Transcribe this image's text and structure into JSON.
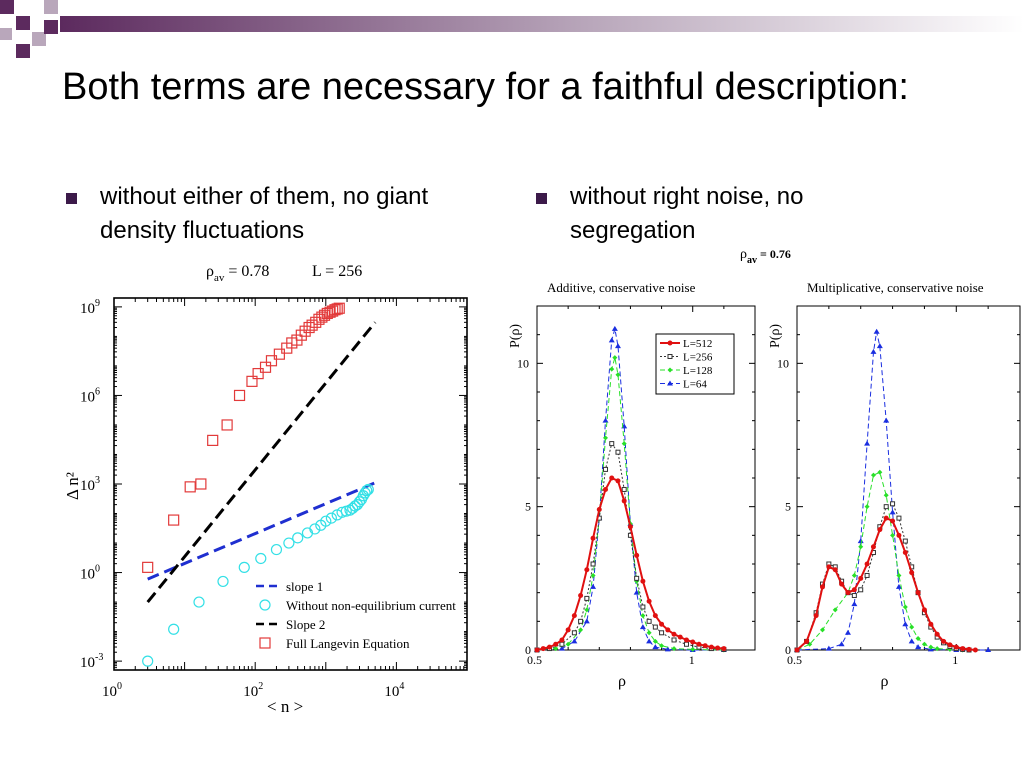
{
  "slide": {
    "title": "Both terms are necessary for a faithful description:",
    "bullets": [
      "without either of them, no giant density fluctuations",
      "without right noise, no segregation"
    ],
    "accent_color": "#5c2a5e",
    "bullet_color": "#3c1a4a"
  },
  "chart_data": [
    {
      "type": "scatter",
      "title_rho": "ρ",
      "title_rho_sub": "av",
      "title_value": " = 0.78",
      "title_L": "L = 256",
      "xlabel": "< n >",
      "ylabel": "Δ n²",
      "xscale": "log",
      "yscale": "log",
      "xlim": [
        1,
        100000
      ],
      "ylim": [
        0.0005,
        2000000000
      ],
      "x_ticks": [
        {
          "base": "10",
          "exp": "0"
        },
        {
          "base": "10",
          "exp": "2"
        },
        {
          "base": "10",
          "exp": "4"
        }
      ],
      "y_ticks": [
        {
          "base": "10",
          "exp": "-3"
        },
        {
          "base": "10",
          "exp": "0"
        },
        {
          "base": "10",
          "exp": "3"
        },
        {
          "base": "10",
          "exp": "6"
        },
        {
          "base": "10",
          "exp": "9"
        }
      ],
      "legend": [
        "slope 1",
        "Without non-equilibrium current",
        "Slope 2",
        "Full Langevin Equation"
      ],
      "legend_position": "bottom-right",
      "series": [
        {
          "name": "slope 1",
          "style": "dashed",
          "color": "#1f2fd0",
          "x": [
            3,
            5000
          ],
          "y": [
            0.6,
            1100
          ]
        },
        {
          "name": "Without non-equilibrium current",
          "style": "circle",
          "color": "#33e0e6",
          "x": [
            3,
            7,
            16,
            35,
            70,
            120,
            200,
            300,
            400,
            550,
            700,
            850,
            1000,
            1200,
            1450,
            1700,
            1950,
            2200,
            2400,
            2600,
            2800,
            3000,
            3200,
            3400,
            3600,
            3800,
            4000
          ],
          "y": [
            0.001,
            0.012,
            0.1,
            0.5,
            1.5,
            3,
            6,
            10,
            15,
            22,
            30,
            40,
            55,
            70,
            90,
            110,
            120,
            130,
            150,
            180,
            200,
            250,
            300,
            400,
            500,
            600,
            650
          ]
        },
        {
          "name": "Slope 2",
          "style": "dashed",
          "color": "#000000",
          "x": [
            3,
            5000
          ],
          "y": [
            0.1,
            300000000
          ]
        },
        {
          "name": "Full Langevin Equation",
          "style": "square",
          "color": "#e23a3a",
          "x": [
            3,
            7,
            12,
            17,
            25,
            40,
            60,
            90,
            110,
            140,
            170,
            220,
            280,
            330,
            390,
            450,
            510,
            580,
            640,
            720,
            800,
            880,
            960,
            1050,
            1150,
            1250,
            1350,
            1450,
            1550
          ],
          "y": [
            1.5,
            60,
            800,
            1000,
            30000,
            100000,
            1000000,
            3000000,
            5500000,
            9000000,
            15000000,
            25000000,
            40000000,
            60000000,
            75000000,
            110000000,
            150000000,
            200000000,
            240000000,
            300000000,
            380000000,
            450000000,
            520000000,
            600000000,
            660000000,
            720000000,
            800000000,
            850000000,
            900000000
          ]
        }
      ]
    },
    {
      "type": "line",
      "title": "Additive, conservative noise",
      "xlabel": "ρ",
      "ylabel": "P(ρ)",
      "xlim": [
        0.5,
        1.2
      ],
      "ylim": [
        0,
        12
      ],
      "x_tick_labels": [
        "0.5",
        "1"
      ],
      "y_tick_labels": [
        "0",
        "5",
        "10"
      ],
      "legend_position": "top-right",
      "series": [
        {
          "name": "L=512",
          "color": "#e01010",
          "style": "solid",
          "x": [
            0.5,
            0.52,
            0.54,
            0.56,
            0.58,
            0.6,
            0.62,
            0.64,
            0.66,
            0.68,
            0.7,
            0.72,
            0.74,
            0.76,
            0.78,
            0.8,
            0.82,
            0.84,
            0.86,
            0.88,
            0.9,
            0.92,
            0.94,
            0.96,
            0.98,
            1.0,
            1.02,
            1.04,
            1.06,
            1.08,
            1.1
          ],
          "y": [
            0.0,
            0.05,
            0.1,
            0.2,
            0.35,
            0.7,
            1.2,
            1.9,
            2.8,
            3.9,
            4.9,
            5.6,
            6.0,
            5.9,
            5.2,
            4.3,
            3.3,
            2.4,
            1.7,
            1.2,
            0.9,
            0.7,
            0.55,
            0.45,
            0.35,
            0.28,
            0.2,
            0.15,
            0.1,
            0.07,
            0.05
          ]
        },
        {
          "name": "L=256",
          "color": "#333333",
          "style": "dotted",
          "x": [
            0.5,
            0.54,
            0.58,
            0.62,
            0.64,
            0.66,
            0.68,
            0.7,
            0.72,
            0.74,
            0.76,
            0.78,
            0.8,
            0.82,
            0.84,
            0.86,
            0.88,
            0.9,
            0.94,
            0.98,
            1.02,
            1.06,
            1.1
          ],
          "y": [
            0.0,
            0.05,
            0.2,
            0.6,
            1.0,
            1.8,
            3.0,
            4.6,
            6.3,
            7.2,
            6.9,
            5.6,
            4.0,
            2.5,
            1.5,
            1.0,
            0.8,
            0.6,
            0.35,
            0.2,
            0.1,
            0.05,
            0.02
          ]
        },
        {
          "name": "L=128",
          "color": "#28e028",
          "style": "dashed",
          "x": [
            0.5,
            0.56,
            0.6,
            0.64,
            0.66,
            0.68,
            0.7,
            0.72,
            0.74,
            0.75,
            0.76,
            0.78,
            0.8,
            0.82,
            0.84,
            0.86,
            0.88,
            0.9,
            0.94,
            1.0,
            1.1
          ],
          "y": [
            0.0,
            0.05,
            0.2,
            0.7,
            1.4,
            2.6,
            4.6,
            7.4,
            9.8,
            10.2,
            9.6,
            7.2,
            4.4,
            2.4,
            1.2,
            0.6,
            0.3,
            0.15,
            0.05,
            0.02,
            0.0
          ]
        },
        {
          "name": "L=64",
          "color": "#1a2ee0",
          "style": "dashed",
          "x": [
            0.5,
            0.58,
            0.62,
            0.66,
            0.68,
            0.7,
            0.72,
            0.74,
            0.75,
            0.76,
            0.78,
            0.8,
            0.82,
            0.84,
            0.86,
            0.88,
            0.92,
            1.0,
            1.1
          ],
          "y": [
            0.0,
            0.05,
            0.3,
            1.0,
            2.2,
            4.6,
            8.0,
            10.8,
            11.2,
            10.6,
            7.8,
            4.4,
            2.0,
            0.8,
            0.3,
            0.1,
            0.02,
            0.0,
            0.0
          ]
        }
      ]
    },
    {
      "type": "line",
      "title": "Multiplicative, conservative noise",
      "xlabel": "ρ",
      "ylabel": "P(ρ)",
      "xlim": [
        0.5,
        1.2
      ],
      "ylim": [
        0,
        12
      ],
      "x_tick_labels": [
        "0.5",
        "1"
      ],
      "y_tick_labels": [
        "0",
        "5",
        "10"
      ],
      "series": [
        {
          "name": "L=512",
          "color": "#e01010",
          "style": "solid",
          "x": [
            0.5,
            0.53,
            0.56,
            0.58,
            0.6,
            0.62,
            0.64,
            0.66,
            0.68,
            0.7,
            0.72,
            0.74,
            0.76,
            0.78,
            0.8,
            0.82,
            0.84,
            0.86,
            0.88,
            0.9,
            0.92,
            0.94,
            0.96,
            0.98,
            1.0,
            1.02,
            1.04,
            1.06
          ],
          "y": [
            0.0,
            0.3,
            1.2,
            2.2,
            2.9,
            2.8,
            2.3,
            2.0,
            2.1,
            2.5,
            3.0,
            3.6,
            4.2,
            4.6,
            4.5,
            4.0,
            3.4,
            2.7,
            2.0,
            1.4,
            0.9,
            0.55,
            0.3,
            0.18,
            0.1,
            0.05,
            0.02,
            0.0
          ]
        },
        {
          "name": "L=256",
          "color": "#333333",
          "style": "dotted",
          "x": [
            0.5,
            0.53,
            0.56,
            0.58,
            0.6,
            0.62,
            0.64,
            0.66,
            0.68,
            0.7,
            0.72,
            0.74,
            0.76,
            0.78,
            0.8,
            0.82,
            0.84,
            0.86,
            0.88,
            0.9,
            0.92,
            0.94,
            0.96,
            0.98,
            1.0,
            1.02,
            1.04
          ],
          "y": [
            0.0,
            0.3,
            1.3,
            2.3,
            3.0,
            2.9,
            2.4,
            2.0,
            1.9,
            2.1,
            2.6,
            3.4,
            4.3,
            5.0,
            5.1,
            4.6,
            3.8,
            2.9,
            2.0,
            1.3,
            0.8,
            0.45,
            0.25,
            0.12,
            0.05,
            0.02,
            0.0
          ]
        },
        {
          "name": "L=128",
          "color": "#28e028",
          "style": "dashed",
          "x": [
            0.5,
            0.54,
            0.58,
            0.62,
            0.66,
            0.68,
            0.7,
            0.72,
            0.74,
            0.76,
            0.78,
            0.8,
            0.82,
            0.84,
            0.86,
            0.88,
            0.9,
            0.92,
            0.94,
            0.98,
            1.02
          ],
          "y": [
            0.0,
            0.2,
            0.7,
            1.4,
            2.0,
            2.6,
            3.6,
            5.0,
            6.1,
            6.2,
            5.4,
            4.0,
            2.6,
            1.5,
            0.8,
            0.4,
            0.2,
            0.1,
            0.05,
            0.02,
            0.0
          ]
        },
        {
          "name": "L=64",
          "color": "#1a2ee0",
          "style": "dashed",
          "x": [
            0.5,
            0.6,
            0.64,
            0.66,
            0.68,
            0.7,
            0.72,
            0.74,
            0.75,
            0.76,
            0.78,
            0.8,
            0.82,
            0.84,
            0.86,
            0.88,
            0.92,
            1.0,
            1.1
          ],
          "y": [
            0.0,
            0.05,
            0.2,
            0.6,
            1.6,
            3.8,
            7.2,
            10.4,
            11.1,
            10.6,
            8.0,
            4.8,
            2.2,
            0.9,
            0.3,
            0.1,
            0.02,
            0.0,
            0.0
          ]
        }
      ]
    }
  ],
  "panel_header": {
    "rho": "ρ",
    "sub": "av",
    "value": " = 0.76"
  }
}
